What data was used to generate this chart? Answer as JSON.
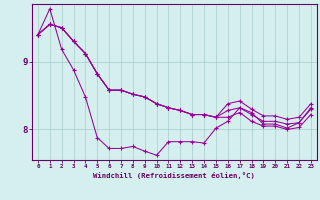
{
  "xlabel": "Windchill (Refroidissement éolien,°C)",
  "bg_color": "#d4efee",
  "line_color": "#990099",
  "grid_color": "#a8ccca",
  "axis_color": "#660066",
  "xlim": [
    -0.5,
    23.5
  ],
  "ylim": [
    7.55,
    9.85
  ],
  "xticks": [
    0,
    1,
    2,
    3,
    4,
    5,
    6,
    7,
    8,
    9,
    10,
    11,
    12,
    13,
    14,
    15,
    16,
    17,
    18,
    19,
    20,
    21,
    22,
    23
  ],
  "yticks": [
    8,
    9
  ],
  "series": [
    [
      9.4,
      9.78,
      9.18,
      8.88,
      8.48,
      7.88,
      7.72,
      7.72,
      7.75,
      7.68,
      7.62,
      7.82,
      7.82,
      7.82,
      7.8,
      8.02,
      8.12,
      8.32,
      8.25,
      8.08,
      8.08,
      8.02,
      8.1,
      8.32
    ],
    [
      9.4,
      9.55,
      9.5,
      9.3,
      9.12,
      8.82,
      8.58,
      8.58,
      8.52,
      8.48,
      8.38,
      8.32,
      8.28,
      8.22,
      8.22,
      8.18,
      8.38,
      8.42,
      8.3,
      8.2,
      8.2,
      8.15,
      8.18,
      8.38
    ],
    [
      9.4,
      9.55,
      9.5,
      9.3,
      9.12,
      8.82,
      8.58,
      8.58,
      8.52,
      8.48,
      8.38,
      8.32,
      8.28,
      8.22,
      8.22,
      8.18,
      8.28,
      8.32,
      8.22,
      8.12,
      8.12,
      8.08,
      8.1,
      8.3
    ],
    [
      9.4,
      9.55,
      9.5,
      9.3,
      9.12,
      8.82,
      8.58,
      8.58,
      8.52,
      8.48,
      8.38,
      8.32,
      8.28,
      8.22,
      8.22,
      8.18,
      8.18,
      8.25,
      8.12,
      8.05,
      8.05,
      8.0,
      8.03,
      8.22
    ]
  ]
}
